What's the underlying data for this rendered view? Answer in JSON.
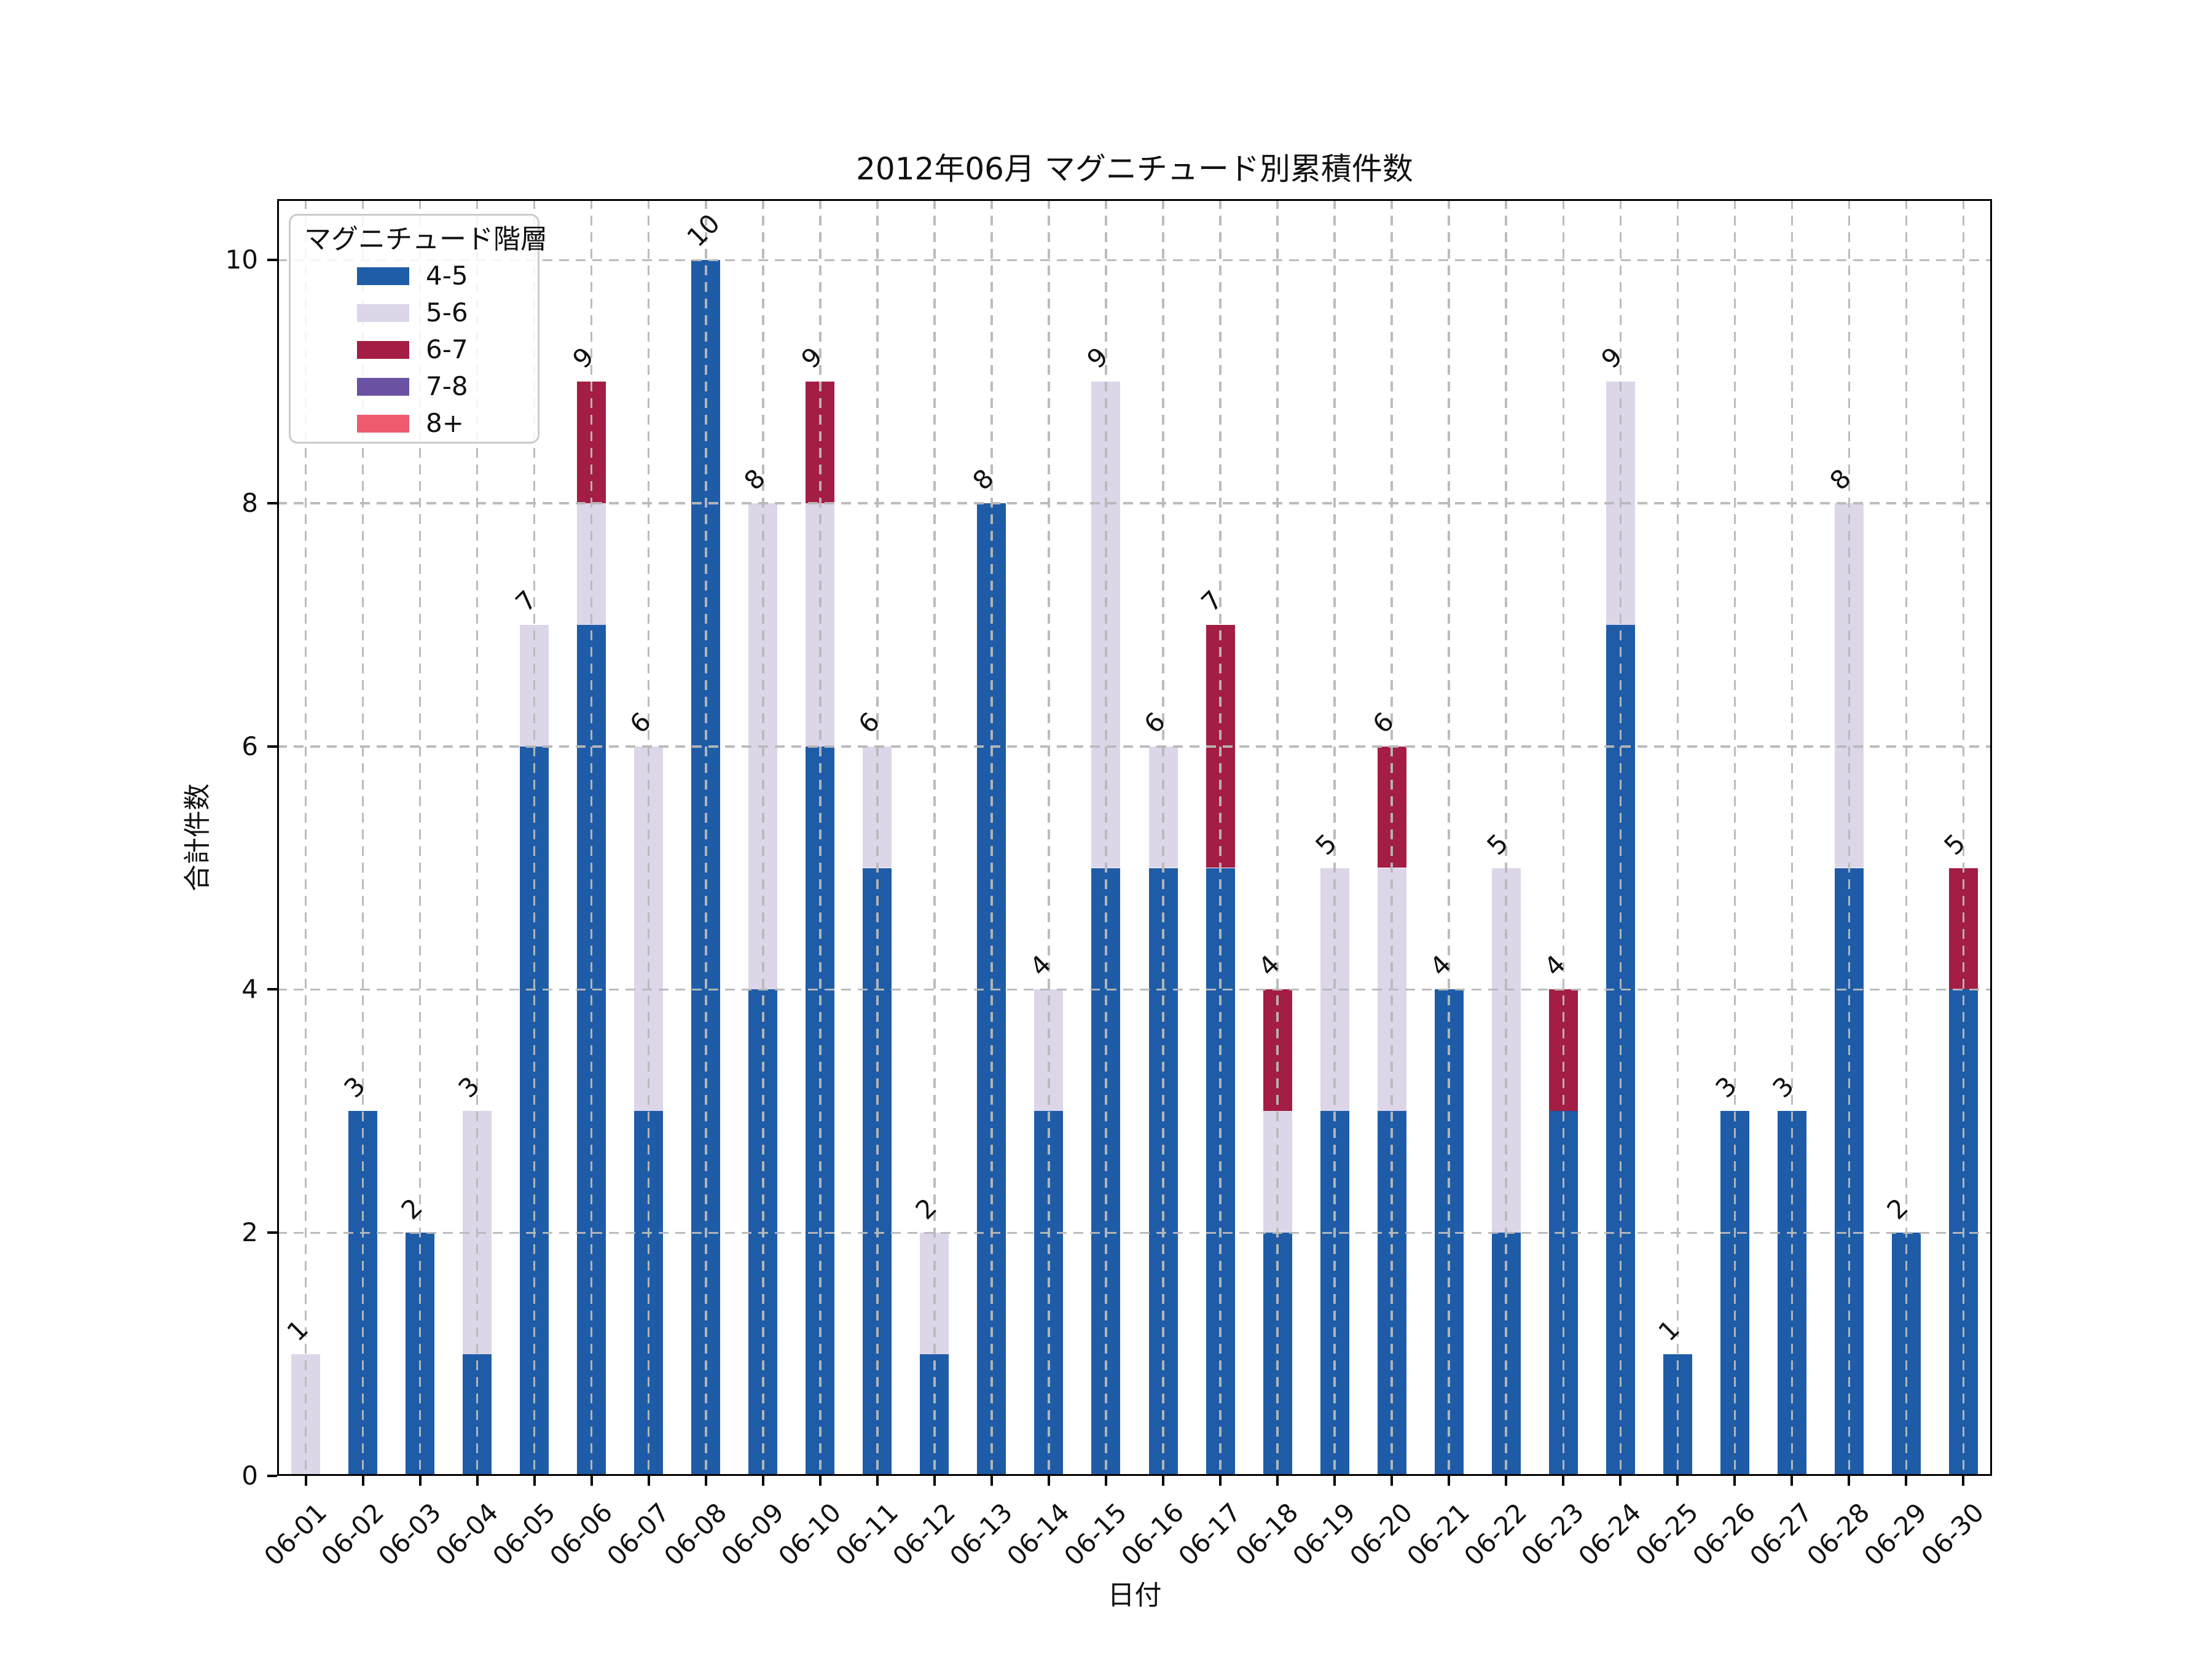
{
  "chart_data": {
    "type": "bar",
    "stacked": true,
    "title": "2012年06月 マグニチュード別累積件数",
    "xlabel": "日付",
    "ylabel": "合計件数",
    "legend_title": "マグニチュード階層",
    "legend_position": "upper left",
    "grid": true,
    "ylim": [
      0,
      10.5
    ],
    "yticks": [
      0,
      2,
      4,
      6,
      8,
      10
    ],
    "categories": [
      "06-01",
      "06-02",
      "06-03",
      "06-04",
      "06-05",
      "06-06",
      "06-07",
      "06-08",
      "06-09",
      "06-10",
      "06-11",
      "06-12",
      "06-13",
      "06-14",
      "06-15",
      "06-16",
      "06-17",
      "06-18",
      "06-19",
      "06-20",
      "06-21",
      "06-22",
      "06-23",
      "06-24",
      "06-25",
      "06-26",
      "06-27",
      "06-28",
      "06-29",
      "06-30"
    ],
    "series": [
      {
        "name": "4-5",
        "color": "#1e5ca8",
        "values": [
          0,
          3,
          2,
          1,
          6,
          7,
          3,
          10,
          4,
          6,
          5,
          1,
          8,
          3,
          5,
          5,
          5,
          2,
          3,
          3,
          4,
          2,
          3,
          7,
          1,
          3,
          3,
          5,
          2,
          4
        ]
      },
      {
        "name": "5-6",
        "color": "#ddd6e9",
        "values": [
          1,
          0,
          0,
          2,
          1,
          1,
          3,
          0,
          4,
          2,
          1,
          1,
          0,
          1,
          4,
          1,
          0,
          1,
          2,
          2,
          0,
          3,
          0,
          2,
          0,
          0,
          0,
          3,
          0,
          0
        ]
      },
      {
        "name": "6-7",
        "color": "#a31d44",
        "values": [
          0,
          0,
          0,
          0,
          0,
          1,
          0,
          0,
          0,
          1,
          0,
          0,
          0,
          0,
          0,
          0,
          2,
          1,
          0,
          1,
          0,
          0,
          1,
          0,
          0,
          0,
          0,
          0,
          0,
          1
        ]
      },
      {
        "name": "7-8",
        "color": "#6a51a2",
        "values": [
          0,
          0,
          0,
          0,
          0,
          0,
          0,
          0,
          0,
          0,
          0,
          0,
          0,
          0,
          0,
          0,
          0,
          0,
          0,
          0,
          0,
          0,
          0,
          0,
          0,
          0,
          0,
          0,
          0,
          0
        ]
      },
      {
        "name": "8+",
        "color": "#ee5b6e",
        "values": [
          0,
          0,
          0,
          0,
          0,
          0,
          0,
          0,
          0,
          0,
          0,
          0,
          0,
          0,
          0,
          0,
          0,
          0,
          0,
          0,
          0,
          0,
          0,
          0,
          0,
          0,
          0,
          0,
          0,
          0
        ]
      }
    ],
    "totals": [
      1,
      3,
      2,
      3,
      7,
      9,
      6,
      10,
      8,
      9,
      6,
      2,
      8,
      4,
      9,
      6,
      7,
      4,
      5,
      6,
      4,
      5,
      4,
      9,
      1,
      3,
      3,
      8,
      2,
      5
    ],
    "colors": {
      "grid": "#b9b9b9",
      "spine": "#000000",
      "text": "#111111",
      "legend_border": "#cbcbcb"
    }
  }
}
